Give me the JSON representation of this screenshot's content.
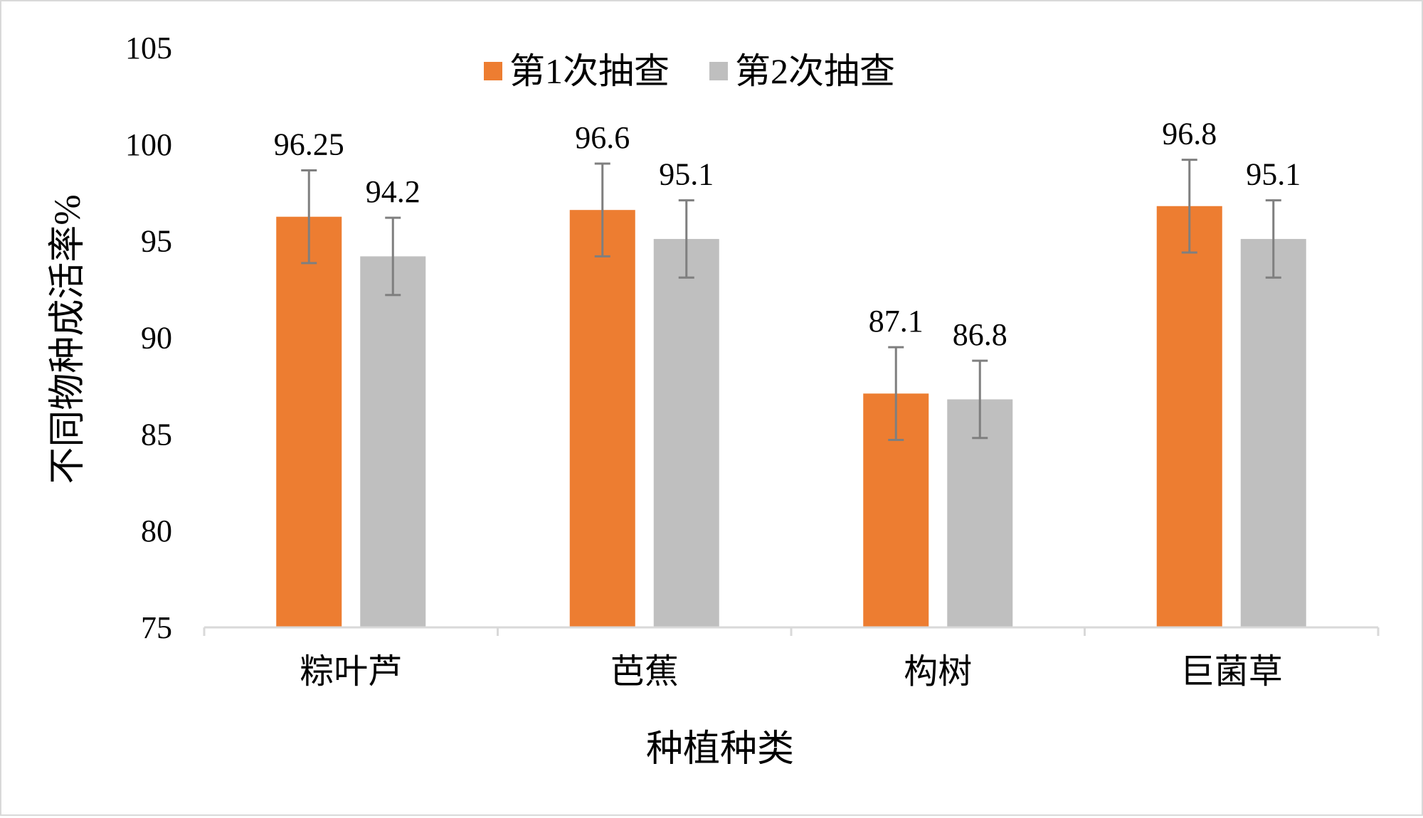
{
  "chart_data": {
    "type": "bar",
    "title": "",
    "xlabel": "种植种类",
    "ylabel": "不同物种成活率%",
    "categories": [
      "粽叶芦",
      "芭蕉",
      "构树",
      "巨菌草"
    ],
    "series": [
      {
        "name": "第1次抽查",
        "color": "#ed7d31",
        "values": [
          96.25,
          96.6,
          87.1,
          96.8
        ],
        "error": [
          2.4,
          2.4,
          2.4,
          2.4
        ],
        "labels": [
          "96.25",
          "96.6",
          "87.1",
          "96.8"
        ]
      },
      {
        "name": "第2次抽查",
        "color": "#bfbfbf",
        "values": [
          94.2,
          95.1,
          86.8,
          95.1
        ],
        "error": [
          2.0,
          2.0,
          2.0,
          2.0
        ],
        "labels": [
          "94.2",
          "95.1",
          "86.8",
          "95.1"
        ]
      }
    ],
    "ylim": [
      75,
      105
    ],
    "yticks": [
      "75",
      "80",
      "85",
      "90",
      "95",
      "100",
      "105"
    ],
    "grid": false,
    "legend": "top-center",
    "error_bar_color": "#7f7f7f",
    "axis_color": "#d9d9d9"
  }
}
